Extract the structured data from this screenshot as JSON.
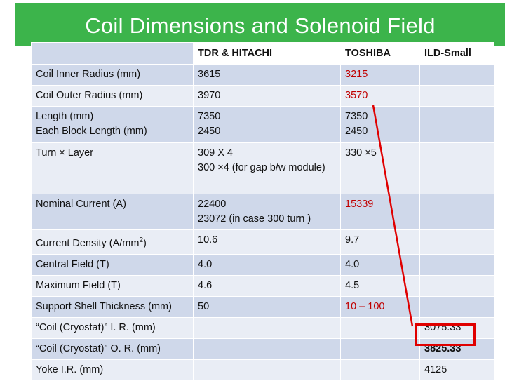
{
  "title": "Coil Dimensions and Solenoid Field",
  "columns": [
    "",
    "TDR & HITACHI",
    "TOSHIBA",
    "ILD-Small"
  ],
  "rows": [
    {
      "label": [
        "Coil Inner Radius (mm)"
      ],
      "tdr": [
        "3615"
      ],
      "toshiba": [
        "3215"
      ],
      "ild": []
    },
    {
      "label": [
        "Coil Outer Radius (mm)"
      ],
      "tdr": [
        "3970"
      ],
      "toshiba": [
        "3570"
      ],
      "ild": []
    },
    {
      "label": [
        "Length (mm)",
        "Each Block Length (mm)"
      ],
      "tdr": [
        "7350",
        "2450"
      ],
      "toshiba": [
        "7350",
        "2450"
      ],
      "ild": []
    },
    {
      "label": [
        "Turn × Layer"
      ],
      "tdr": [
        "309 X 4",
        "300 ×4 (for gap b/w module)"
      ],
      "toshiba": [
        "330 ×5"
      ],
      "ild": []
    },
    {
      "label": [
        "Nominal Current (A)"
      ],
      "tdr": [
        "22400",
        "23072 (in case 300 turn )"
      ],
      "toshiba": [
        "15339"
      ],
      "ild": []
    },
    {
      "label": [
        "Current Density (A/mm2)"
      ],
      "tdr": [
        "10.6"
      ],
      "toshiba": [
        "9.7"
      ],
      "ild": []
    },
    {
      "label": [
        "Central Field (T)"
      ],
      "tdr": [
        "4.0"
      ],
      "toshiba": [
        "4.0"
      ],
      "ild": []
    },
    {
      "label": [
        "Maximum Field (T)"
      ],
      "tdr": [
        "4.6"
      ],
      "toshiba": [
        "4.5"
      ],
      "ild": []
    },
    {
      "label": [
        "Support Shell Thickness (mm)"
      ],
      "tdr": [
        "50"
      ],
      "toshiba": [
        "10 – 100"
      ],
      "ild": []
    },
    {
      "label": [
        "“Coil (Cryostat)” I. R. (mm)"
      ],
      "tdr": [],
      "toshiba": [],
      "ild": [
        "3075.33"
      ]
    },
    {
      "label": [
        "“Coil (Cryostat)” O. R. (mm)"
      ],
      "tdr": [],
      "toshiba": [],
      "ild": [
        "3825.33"
      ]
    },
    {
      "label": [
        "Yoke I.R.  (mm)"
      ],
      "tdr": [],
      "toshiba": [],
      "ild": [
        "4125"
      ]
    }
  ],
  "colors": {
    "title_bar": "#3cb44b",
    "title_text": "#ffffff",
    "row_dark": "#cfd8ea",
    "row_light": "#e9edf5",
    "accent_red": "#c00000",
    "highlight_box": "#e00000"
  }
}
